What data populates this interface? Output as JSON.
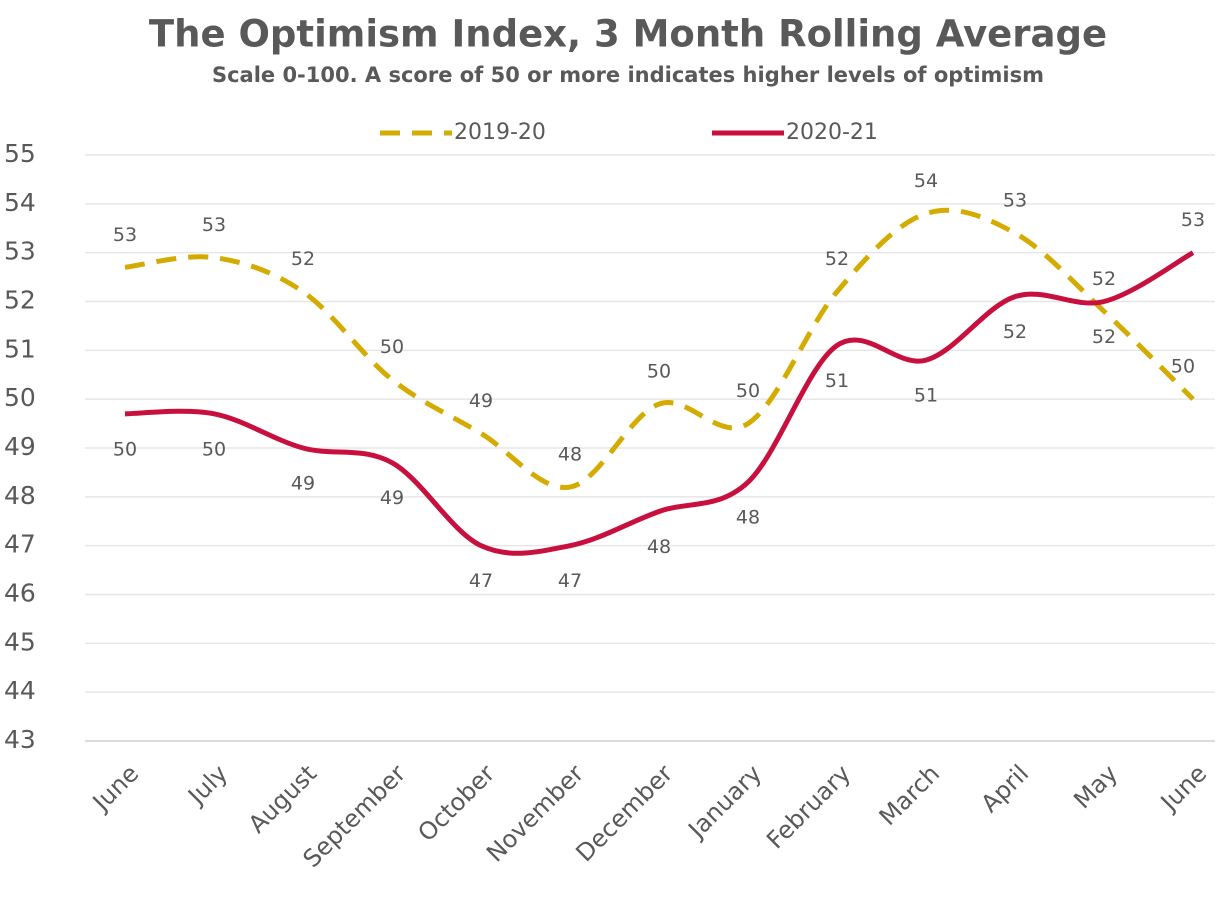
{
  "chart_data": {
    "type": "line",
    "title": "The Optimism Index, 3 Month Rolling Average",
    "subtitle": "Scale 0-100. A score of 50 or more indicates higher levels of optimism",
    "categories": [
      "June",
      "July",
      "August",
      "September",
      "October",
      "November",
      "December",
      "January",
      "February",
      "March",
      "April",
      "May",
      "June"
    ],
    "series": [
      {
        "name": "2019-20",
        "color": "#d4ab00",
        "dashed": true,
        "values": [
          52.7,
          52.9,
          52.2,
          50.4,
          49.3,
          48.2,
          49.9,
          49.5,
          52.2,
          53.8,
          53.4,
          51.8,
          50.0
        ],
        "value_labels": [
          "53",
          "53",
          "52",
          "50",
          "49",
          "48",
          "50",
          "50",
          "52",
          "54",
          "53",
          "52",
          "50"
        ]
      },
      {
        "name": "2020-21",
        "color": "#c8103e",
        "dashed": false,
        "values": [
          49.7,
          49.7,
          49.0,
          48.7,
          47.0,
          47.0,
          47.7,
          48.3,
          51.1,
          50.8,
          52.1,
          52.0,
          53.0
        ],
        "value_labels": [
          "50",
          "50",
          "49",
          "49",
          "47",
          "47",
          "48",
          "48",
          "51",
          "51",
          "52",
          "52",
          "53"
        ]
      }
    ],
    "ylim": [
      43,
      55
    ],
    "yticks": [
      43,
      44,
      45,
      46,
      47,
      48,
      49,
      50,
      51,
      52,
      53,
      54,
      55
    ],
    "grid": true,
    "legend": "top"
  }
}
